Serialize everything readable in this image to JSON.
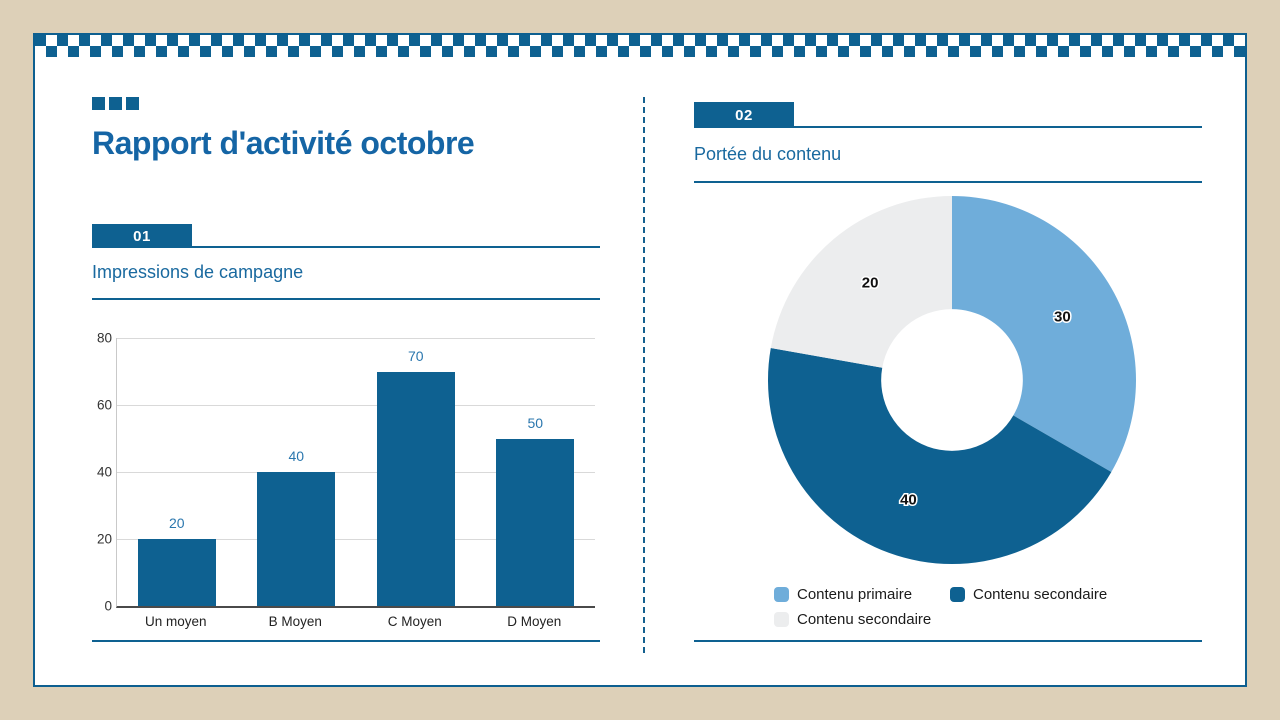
{
  "window": {
    "background": "#ddd0b8",
    "card_background": "#ffffff"
  },
  "header": {
    "title": "Rapport d'activité octobre"
  },
  "left_panel": {
    "badge": "01"
  },
  "right_panel": {
    "badge": "02"
  },
  "colors": {
    "brand_blue": "#0e6191",
    "title_blue": "#1565a5",
    "subtitle_blue": "#19699f",
    "value_label_blue": "#2b77ae",
    "light_blue": "#6fadda",
    "light_gray": "#ecedee",
    "beige_background": "#ddd0b8"
  },
  "chart_data": [
    {
      "type": "bar",
      "panel": "left",
      "title": "Impressions de campagne",
      "categories": [
        "Un moyen",
        "B Moyen",
        "C Moyen",
        "D Moyen"
      ],
      "values": [
        20,
        40,
        70,
        50
      ],
      "bar_color": "#0e6191",
      "value_label_color": "#2b77ae",
      "ylim": [
        0,
        80
      ],
      "yticks": [
        0,
        20,
        40,
        60,
        80
      ],
      "grid": true,
      "value_labels": true,
      "legend": false
    },
    {
      "type": "pie",
      "panel": "right",
      "title": "Portée du contenu",
      "donut": true,
      "start_angle_deg": 0,
      "direction": "clockwise",
      "inner_radius_ratio": 0.385,
      "slices": [
        {
          "label": "Contenu primaire",
          "value": 30,
          "color": "#6fadda"
        },
        {
          "label": "Contenu secondaire",
          "value": 40,
          "color": "#0e6191"
        },
        {
          "label": "Contenu secondaire",
          "value": 20,
          "color": "#ecedee"
        }
      ],
      "value_labels": true,
      "legend_position": "bottom"
    }
  ]
}
